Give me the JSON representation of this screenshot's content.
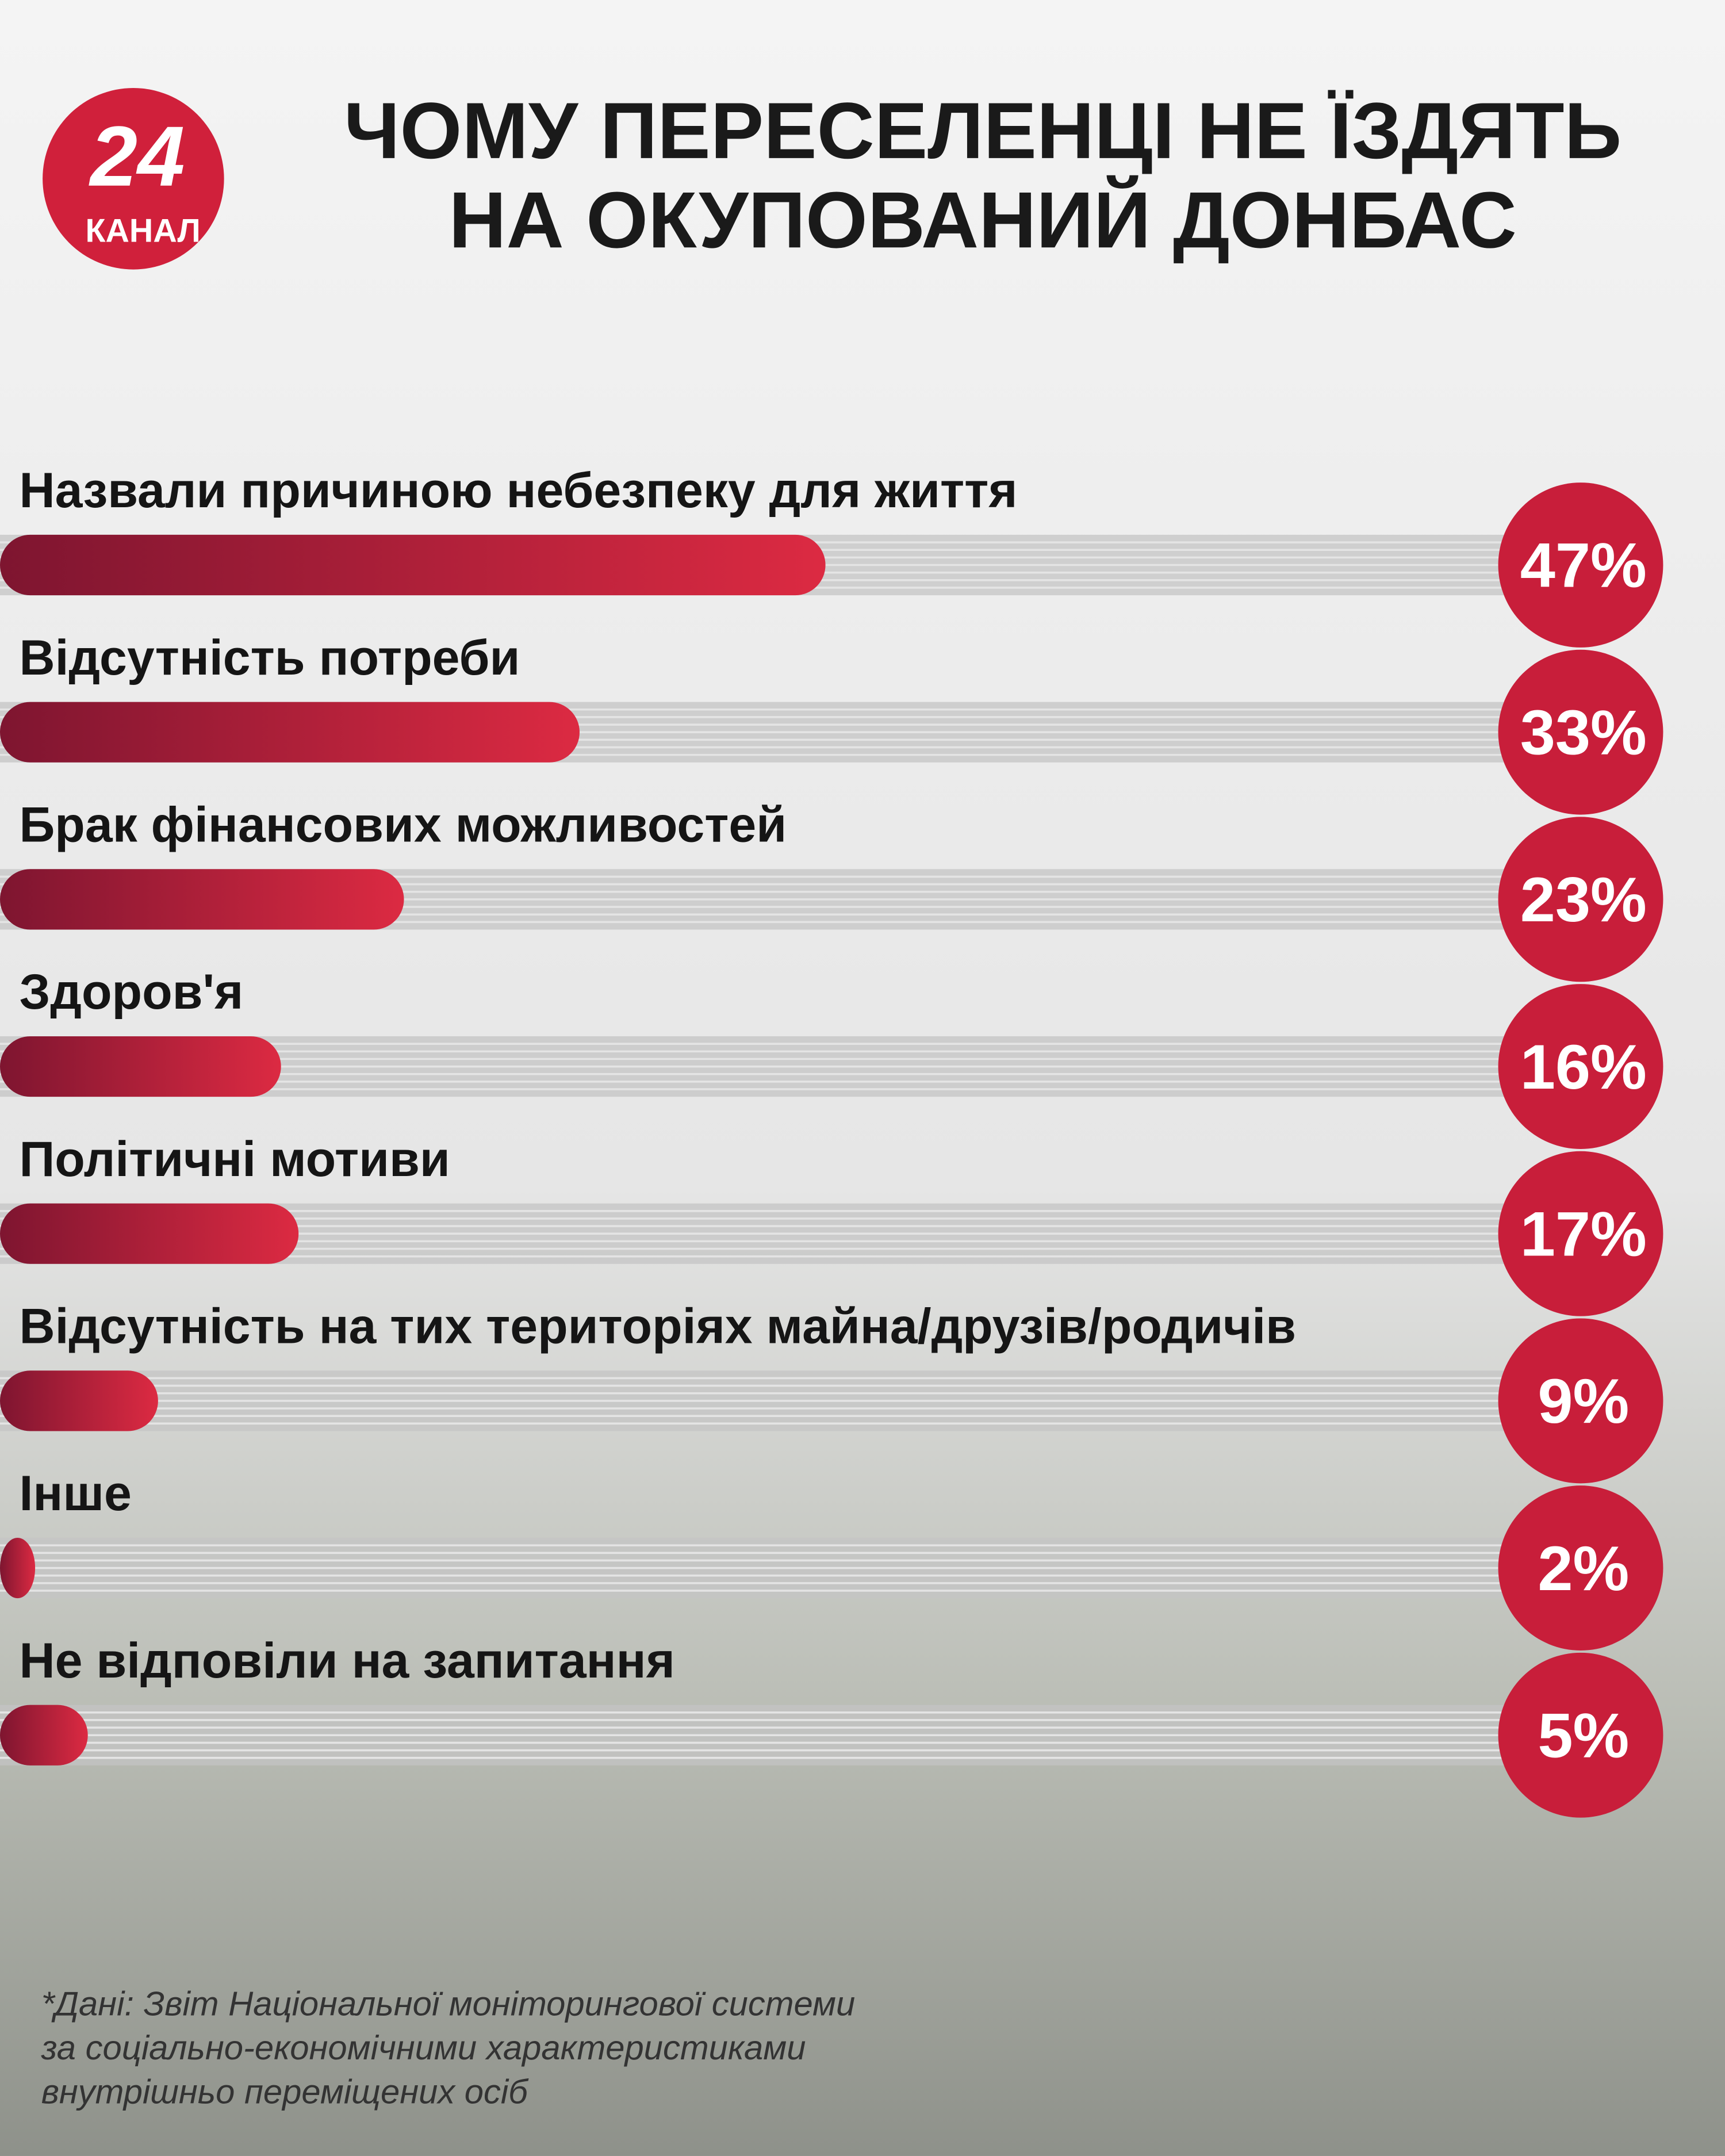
{
  "logo": {
    "number": "24",
    "name": "КАНАЛ"
  },
  "chart_data": {
    "type": "bar",
    "orientation": "horizontal",
    "title": [
      "ЧОМУ ПЕРЕСЕЛЕНЦІ НЕ ЇЗДЯТЬ",
      "НА ОКУПОВАНИЙ ДОНБАС"
    ],
    "categories": [
      "Назвали причиною небезпеку для життя",
      "Відсутність потреби",
      "Брак фінансових можливостей",
      "Здоров'я",
      "Політичні мотиви",
      "Відсутність на тих територіях майна/друзів/родичів",
      "Інше",
      "Не відповіли на запитання"
    ],
    "values": [
      47,
      33,
      23,
      16,
      17,
      9,
      2,
      5
    ],
    "value_labels": [
      "47%",
      "33%",
      "23%",
      "16%",
      "17%",
      "9%",
      "2%",
      "5%"
    ],
    "xlim": [
      0,
      90
    ],
    "colors": {
      "bar_start": "#7e1530",
      "bar_end": "#dc2a42",
      "track": "#c4c4c4",
      "badge": "#c81e3a"
    },
    "source": [
      "*Дані: Звіт Національної моніторингової системи",
      "за соціально-економічними характеристиками",
      "внутрішньо переміщених осіб"
    ]
  }
}
